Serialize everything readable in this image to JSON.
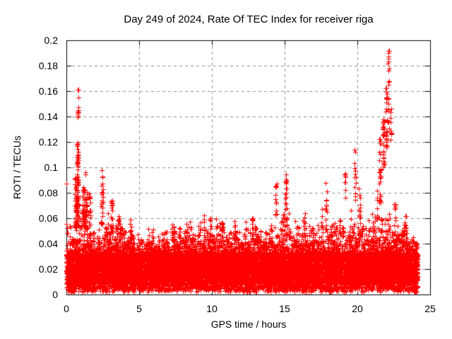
{
  "frame": {
    "background": "#ffffff",
    "border_color": "#000000",
    "text_color": "#000000"
  },
  "chart_data": {
    "type": "scatter",
    "title": "Day 249 of 2024, Rate Of TEC Index for receiver riga",
    "xlabel": "GPS time / hours",
    "ylabel": "ROTI / TECUs",
    "xlim": [
      0,
      25
    ],
    "ylim": [
      0,
      0.2
    ],
    "xticks": [
      {
        "v": 0,
        "label": "0"
      },
      {
        "v": 5,
        "label": "5"
      },
      {
        "v": 10,
        "label": "10"
      },
      {
        "v": 15,
        "label": "15"
      },
      {
        "v": 20,
        "label": "20"
      },
      {
        "v": 25,
        "label": "25"
      }
    ],
    "yticks": [
      {
        "v": 0,
        "label": "0"
      },
      {
        "v": 0.02,
        "label": "0.02"
      },
      {
        "v": 0.04,
        "label": "0.04"
      },
      {
        "v": 0.06,
        "label": "0.06"
      },
      {
        "v": 0.08,
        "label": "0.08"
      },
      {
        "v": 0.1,
        "label": "0.1"
      },
      {
        "v": 0.12,
        "label": "0.12"
      },
      {
        "v": 0.14,
        "label": "0.14"
      },
      {
        "v": 0.16,
        "label": "0.16"
      },
      {
        "v": 0.18,
        "label": "0.18"
      },
      {
        "v": 0.2,
        "label": "0.2"
      }
    ],
    "grid": {
      "show": true,
      "style": "dashed",
      "color": "#8c8c8c"
    },
    "legend": "none",
    "series": [
      {
        "name": "ROTI",
        "marker": "plus",
        "marker_size_px": 7,
        "color": "#ff0000",
        "time_range_hours": [
          0,
          24.15
        ],
        "baseline_band": {
          "desc": "dense solid noise floor across whole day",
          "band_min": 0.009,
          "band_max": 0.032,
          "fringe_min": 0.002,
          "fringe_max": 0.01
        },
        "grass_envelope": {
          "desc": "typical local maxima of ordinary fluctuations, sampled every 0.5 h",
          "t0": 0,
          "dt": 0.5,
          "values": [
            0.06,
            0.068,
            0.072,
            0.065,
            0.05,
            0.06,
            0.062,
            0.058,
            0.05,
            0.052,
            0.046,
            0.05,
            0.052,
            0.048,
            0.052,
            0.056,
            0.05,
            0.056,
            0.052,
            0.062,
            0.056,
            0.06,
            0.052,
            0.058,
            0.054,
            0.062,
            0.056,
            0.05,
            0.052,
            0.065,
            0.068,
            0.056,
            0.056,
            0.062,
            0.056,
            0.062,
            0.06,
            0.056,
            0.062,
            0.062,
            0.068,
            0.065,
            0.06,
            0.068,
            0.06,
            0.065,
            0.058,
            0.05,
            0.045
          ]
        },
        "spikes_format": [
          "t_center_hours",
          "width_hours",
          "v_min",
          "v_max",
          "n_points"
        ],
        "spikes": [
          [
            0.02,
            0.02,
            0.087,
            0.089,
            1
          ],
          [
            0.7,
            0.25,
            0.052,
            0.092,
            70
          ],
          [
            0.78,
            0.1,
            0.09,
            0.12,
            28
          ],
          [
            0.8,
            0.07,
            0.135,
            0.162,
            11
          ],
          [
            1.25,
            0.35,
            0.05,
            0.085,
            60
          ],
          [
            1.3,
            0.05,
            0.093,
            0.097,
            2
          ],
          [
            1.6,
            0.12,
            0.055,
            0.09,
            14
          ],
          [
            2.45,
            0.12,
            0.055,
            0.098,
            26
          ],
          [
            3.1,
            0.18,
            0.048,
            0.08,
            22
          ],
          [
            3.6,
            0.1,
            0.042,
            0.062,
            10
          ],
          [
            4.4,
            0.12,
            0.04,
            0.062,
            10
          ],
          [
            7.4,
            0.1,
            0.04,
            0.056,
            8
          ],
          [
            8.3,
            0.1,
            0.04,
            0.057,
            8
          ],
          [
            9.5,
            0.1,
            0.042,
            0.063,
            9
          ],
          [
            10.7,
            0.1,
            0.04,
            0.062,
            8
          ],
          [
            11.6,
            0.1,
            0.04,
            0.058,
            8
          ],
          [
            12.8,
            0.12,
            0.042,
            0.064,
            10
          ],
          [
            14.4,
            0.1,
            0.058,
            0.091,
            12
          ],
          [
            15.1,
            0.12,
            0.05,
            0.097,
            22
          ],
          [
            16.4,
            0.1,
            0.042,
            0.07,
            9
          ],
          [
            17.85,
            0.12,
            0.05,
            0.089,
            16
          ],
          [
            19.15,
            0.08,
            0.075,
            0.096,
            8
          ],
          [
            19.85,
            0.1,
            0.072,
            0.114,
            14
          ],
          [
            20.15,
            0.1,
            0.06,
            0.09,
            10
          ],
          [
            21.35,
            0.08,
            0.055,
            0.09,
            10
          ],
          [
            21.55,
            0.12,
            0.07,
            0.125,
            26
          ],
          [
            21.8,
            0.1,
            0.095,
            0.14,
            26
          ],
          [
            22.0,
            0.08,
            0.115,
            0.165,
            24
          ],
          [
            22.15,
            0.08,
            0.13,
            0.193,
            22
          ],
          [
            22.3,
            0.08,
            0.12,
            0.15,
            10
          ],
          [
            22.6,
            0.15,
            0.048,
            0.072,
            12
          ],
          [
            23.3,
            0.12,
            0.042,
            0.064,
            10
          ]
        ],
        "global_max_value": 0.193,
        "global_max_time_hours": 22.15
      }
    ],
    "render": {
      "seed": 20240249,
      "baseline_points": 16000,
      "p_band": 0.66,
      "p_grass": 0.24,
      "p_fringe": 0.07,
      "p_low": 0.03
    }
  }
}
